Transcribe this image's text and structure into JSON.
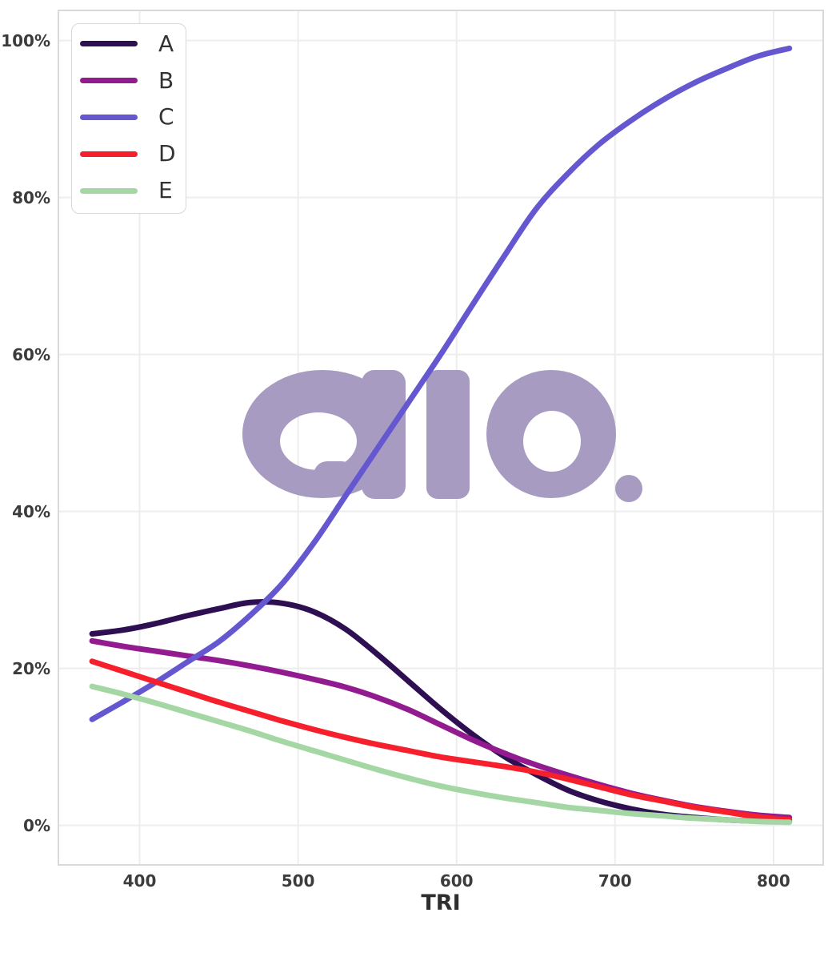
{
  "styles": {
    "background": "#ffffff",
    "grid_color": "#ededed",
    "panel_border": "#d9d9d9",
    "tick_color": "#3c3c3c",
    "legend_border": "#d8d8d8"
  },
  "watermark": {
    "text": "aio.",
    "color": "#a89bc1"
  },
  "chart_data": {
    "type": "line",
    "title": "",
    "xlabel": "TRI",
    "ylabel": "",
    "grid": true,
    "legend_position": "top-left",
    "xlim": [
      349,
      831
    ],
    "ylim": [
      0,
      100
    ],
    "xticks": [
      400,
      500,
      600,
      700,
      800
    ],
    "x_tick_labels": [
      "400",
      "500",
      "600",
      "700",
      "800"
    ],
    "yticks": [
      0,
      20,
      40,
      60,
      80,
      100
    ],
    "y_tick_labels": [
      "0%",
      "20%",
      "40%",
      "60%",
      "80%",
      "100%"
    ],
    "x": [
      370,
      390,
      410,
      430,
      450,
      470,
      490,
      510,
      530,
      550,
      570,
      590,
      610,
      630,
      650,
      670,
      690,
      710,
      730,
      750,
      770,
      790,
      810
    ],
    "series": [
      {
        "name": "A",
        "color": "#2e0f52",
        "values": [
          24.4,
          24.9,
          25.7,
          26.7,
          27.6,
          28.4,
          28.3,
          27.2,
          25.0,
          21.8,
          18.3,
          14.8,
          11.6,
          8.8,
          6.5,
          4.5,
          3.1,
          2.1,
          1.4,
          1.0,
          0.7,
          0.55,
          0.45
        ]
      },
      {
        "name": "B",
        "color": "#931b90",
        "values": [
          23.5,
          22.8,
          22.2,
          21.6,
          21.0,
          20.3,
          19.5,
          18.6,
          17.6,
          16.3,
          14.7,
          12.8,
          10.9,
          9.2,
          7.7,
          6.4,
          5.2,
          4.1,
          3.2,
          2.4,
          1.8,
          1.3,
          1.0
        ]
      },
      {
        "name": "C",
        "color": "#6557d0",
        "values": [
          13.5,
          15.8,
          18.2,
          20.8,
          23.4,
          26.8,
          30.8,
          36.0,
          42.0,
          48.0,
          54.0,
          60.0,
          66.3,
          72.5,
          78.5,
          83.0,
          86.8,
          89.8,
          92.4,
          94.6,
          96.4,
          98.0,
          99.0
        ]
      },
      {
        "name": "D",
        "color": "#f6202d",
        "values": [
          20.9,
          19.6,
          18.3,
          17.0,
          15.7,
          14.5,
          13.3,
          12.2,
          11.2,
          10.3,
          9.5,
          8.7,
          8.1,
          7.5,
          6.8,
          5.9,
          4.9,
          3.9,
          3.1,
          2.3,
          1.7,
          1.1,
          0.7
        ]
      },
      {
        "name": "E",
        "color": "#a4d7a4",
        "values": [
          17.7,
          16.7,
          15.6,
          14.4,
          13.2,
          12.0,
          10.7,
          9.5,
          8.3,
          7.1,
          6.0,
          5.0,
          4.2,
          3.5,
          2.9,
          2.3,
          1.9,
          1.5,
          1.2,
          0.9,
          0.7,
          0.5,
          0.4
        ]
      }
    ]
  }
}
